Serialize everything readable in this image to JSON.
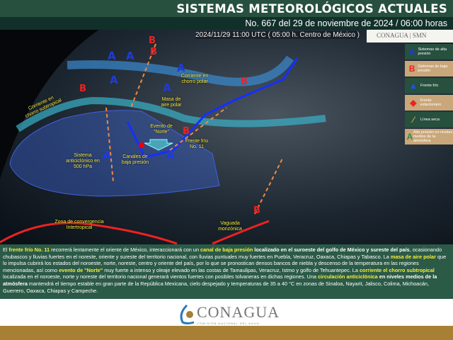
{
  "header": {
    "title": "SISTEMAS METEOROLÓGICOS ACTUALES",
    "subtitle": "No. 667 del 29 de noviembre de 2024 / 06:00 horas"
  },
  "map": {
    "timestamp": "2024/11/29 11:00 UTC ( 05:00 h. Centro de México )",
    "logos": {
      "conagua": "CONAGUA",
      "smn": "SMN"
    },
    "labels": {
      "jet_polar": "Corriente en chorro polar",
      "jet_subtropical": "Corriente en chorro subtropical",
      "polar_air": "Masa de aire polar",
      "norte": "Evento de \"Norte\"",
      "front": "Frente frío No. 11",
      "anticyclone": "Sistema anticiclónico en 500 hPa",
      "trough": "Canales de baja presión",
      "itcz": "Zona de convergencia Intertropical",
      "monsoon": "Vaguada monzónica"
    },
    "high_letter": "A",
    "low_letter": "B"
  },
  "legend": [
    {
      "icon": "A",
      "label": "Sistemas de alta presión",
      "color": "#1f3ae0"
    },
    {
      "icon": "B",
      "label": "Sistemas de baja presión",
      "color": "#e22222"
    },
    {
      "icon": "cold-front-icon",
      "label": "Frente frío"
    },
    {
      "icon": "stationary-front-icon",
      "label": "Frente estacionario"
    },
    {
      "icon": "dry-line-icon",
      "label": "Línea seca"
    },
    {
      "icon": "A",
      "label": "Alta presión en niveles medios de la atmósfera"
    }
  ],
  "bulletin": {
    "p1": "El ",
    "h1": "frente frío No. 11",
    "p2": " recorrerá lentamente el oriente de México, interaccionará con un ",
    "h2": "canal de baja presión",
    "b1": " localizado en el suroeste del golfo de México y sureste del país",
    "p3": ", ocasionando chubascos y lluvias fuertes en el noreste, oriente y sureste del territorio nacional, con lluvias puntuales muy fuertes en Puebla, Veracruz, Oaxaca, Chiapas y Tabasco. La ",
    "h3": "masa de aire polar",
    "p4": " que lo impulsa cubrirá los estados del noroeste, norte, noreste, centro y oriente del país, por lo que se pronostican densos bancos de niebla y descenso de la temperatura en las regiones mencionadas, así como ",
    "h4": "evento de \"Norte\"",
    "p5": " muy fuerte a intenso y oleaje elevado en las costas de Tamaulipas, Veracruz, Istmo y golfo de Tehuantepec. La ",
    "h5": "corriente el chorro subtropical",
    "p6": " localizada en el noroeste, norte y noreste del territorio nacional generará vientos fuertes con posibles tolvaneras en dichas regiones. Una ",
    "h6": "circulación anticiclónica",
    "b2": " en niveles medios de la atmósfera",
    "p7": " mantendrá el tiempo estable en gran parte de la República Mexicana, cielo despejado y temperaturas de 35 a 40 °C en zonas de Sinaloa, Nayarit, Jalisco, Colima, Michoacán, Guerrero, Oaxaca, Chiapas y Campeche."
  },
  "footer": {
    "logo_name": "CONAGUA",
    "logo_sub": "COMISIÓN NACIONAL DEL AGUA"
  }
}
